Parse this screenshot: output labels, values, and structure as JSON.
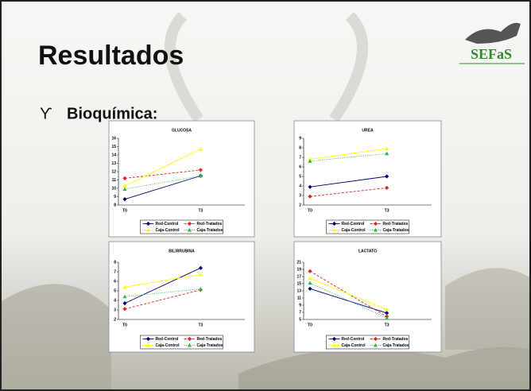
{
  "title": "Resultados",
  "bullet_marker": "ϒ",
  "bullet": "Bioquímica:",
  "logo": "SEFaS",
  "chart_data": [
    {
      "type": "line",
      "title": "GLUCOSA",
      "categories": [
        "T0",
        "T3"
      ],
      "ylim": [
        8,
        16
      ],
      "yticks": [
        8,
        9,
        10,
        11,
        12,
        13,
        14,
        15,
        16
      ],
      "series": [
        {
          "name": "Red-Control",
          "color": "#000080",
          "style": "solid",
          "marker": "diamond",
          "values": [
            8.7,
            11.5
          ]
        },
        {
          "name": "Red-Tratados",
          "color": "#e0201c",
          "style": "dashed",
          "marker": "diamond",
          "values": [
            11.2,
            12.2
          ]
        },
        {
          "name": "Caja-Control",
          "color": "#ffff00",
          "style": "solid",
          "marker": "triangle",
          "values": [
            10.3,
            14.7
          ]
        },
        {
          "name": "Caja-Tratados",
          "color": "#2db84a",
          "style": "dotted",
          "marker": "triangle",
          "values": [
            9.9,
            11.5
          ]
        }
      ]
    },
    {
      "type": "line",
      "title": "UREA",
      "categories": [
        "T0",
        "T3"
      ],
      "ylim": [
        2,
        9
      ],
      "yticks": [
        2,
        3,
        4,
        5,
        6,
        7,
        8,
        9
      ],
      "series": [
        {
          "name": "Red-Control",
          "color": "#000080",
          "style": "solid",
          "marker": "diamond",
          "values": [
            3.9,
            5.0
          ]
        },
        {
          "name": "Red-Tratados",
          "color": "#e0201c",
          "style": "dashed",
          "marker": "diamond",
          "values": [
            2.9,
            3.8
          ]
        },
        {
          "name": "Caja-Control",
          "color": "#ffff00",
          "style": "solid",
          "marker": "triangle",
          "values": [
            6.8,
            7.9
          ]
        },
        {
          "name": "Caja-Tratados",
          "color": "#2db84a",
          "style": "dotted",
          "marker": "triangle",
          "values": [
            6.6,
            7.4
          ]
        }
      ]
    },
    {
      "type": "line",
      "title": "BILIRRUBINA",
      "categories": [
        "T0",
        "T3"
      ],
      "ylim": [
        2,
        8
      ],
      "yticks": [
        2,
        3,
        4,
        5,
        6,
        7,
        8
      ],
      "series": [
        {
          "name": "Red-Control",
          "color": "#000080",
          "style": "solid",
          "marker": "diamond",
          "values": [
            3.7,
            7.4
          ]
        },
        {
          "name": "Red-Tratados",
          "color": "#e0201c",
          "style": "dashed",
          "marker": "diamond",
          "values": [
            3.1,
            5.1
          ]
        },
        {
          "name": "Caja-Control",
          "color": "#ffff00",
          "style": "solid",
          "marker": "triangle",
          "values": [
            5.4,
            6.7
          ]
        },
        {
          "name": "Caja-Tratados",
          "color": "#2db84a",
          "style": "dotted",
          "marker": "triangle",
          "values": [
            4.4,
            5.2
          ]
        }
      ]
    },
    {
      "type": "line",
      "title": "LACTATO",
      "categories": [
        "T0",
        "T3"
      ],
      "ylim": [
        5,
        21
      ],
      "yticks": [
        5,
        7,
        9,
        11,
        13,
        15,
        17,
        19,
        21
      ],
      "series": [
        {
          "name": "Red-Control",
          "color": "#000080",
          "style": "solid",
          "marker": "diamond",
          "values": [
            13.6,
            6.8
          ]
        },
        {
          "name": "Red-Tratados",
          "color": "#e0201c",
          "style": "dashed",
          "marker": "diamond",
          "values": [
            18.5,
            5.8
          ]
        },
        {
          "name": "Caja-Control",
          "color": "#ffff00",
          "style": "solid",
          "marker": "triangle",
          "values": [
            16.5,
            7.8
          ]
        },
        {
          "name": "Caja-Tratados",
          "color": "#2db84a",
          "style": "dotted",
          "marker": "triangle",
          "values": [
            15.2,
            5.4
          ]
        }
      ]
    }
  ]
}
